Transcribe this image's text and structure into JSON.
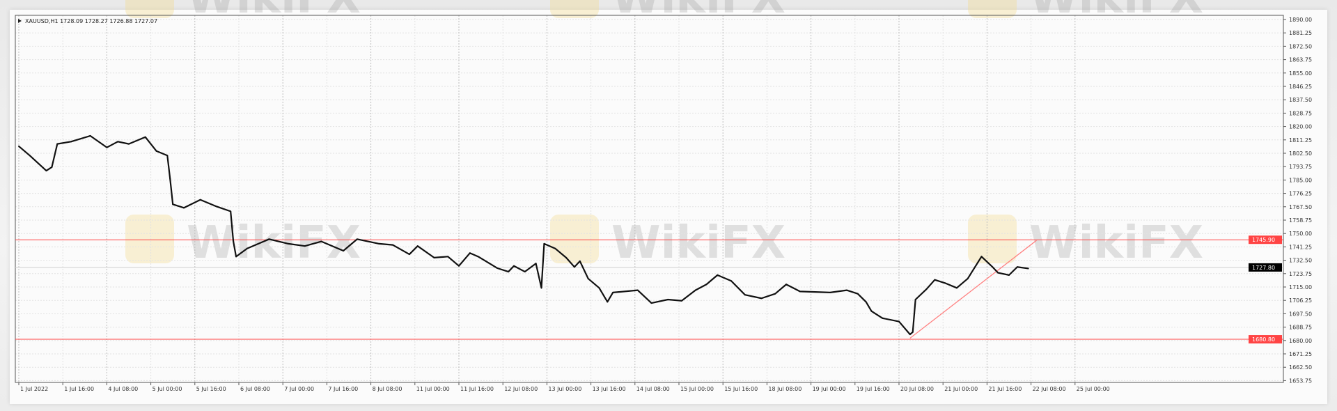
{
  "chart_data": {
    "type": "line",
    "title": "",
    "header": "XAUUSD,H1 1728.09 1728.27 1726.88 1727.07",
    "ylim": [
      1650,
      1892
    ],
    "grid": true,
    "y_ticks": [
      "1890.00",
      "1881.25",
      "1872.50",
      "1863.75",
      "1855.00",
      "1846.25",
      "1837.50",
      "1828.75",
      "1820.00",
      "1811.25",
      "1802.50",
      "1793.75",
      "1785.00",
      "1776.25",
      "1767.50",
      "1758.75",
      "1750.00",
      "1741.25",
      "1732.50",
      "1723.75",
      "1715.00",
      "1706.25",
      "1697.50",
      "1688.75",
      "1680.00",
      "1671.25",
      "1662.50",
      "1653.75"
    ],
    "x_ticks": [
      {
        "label": "1 Jul 2022",
        "time": "2022-07-01 00:00"
      },
      {
        "label": "1 Jul 16:00",
        "time": "2022-07-01 16:00"
      },
      {
        "label": "4 Jul 08:00",
        "time": "2022-07-04 08:00"
      },
      {
        "label": "5 Jul 00:00",
        "time": "2022-07-05 00:00"
      },
      {
        "label": "5 Jul 16:00",
        "time": "2022-07-05 16:00"
      },
      {
        "label": "6 Jul 08:00",
        "time": "2022-07-06 08:00"
      },
      {
        "label": "7 Jul 00:00",
        "time": "2022-07-07 00:00"
      },
      {
        "label": "7 Jul 16:00",
        "time": "2022-07-07 16:00"
      },
      {
        "label": "8 Jul 08:00",
        "time": "2022-07-08 08:00"
      },
      {
        "label": "11 Jul 00:00",
        "time": "2022-07-11 00:00"
      },
      {
        "label": "11 Jul 16:00",
        "time": "2022-07-11 16:00"
      },
      {
        "label": "12 Jul 08:00",
        "time": "2022-07-12 08:00"
      },
      {
        "label": "13 Jul 00:00",
        "time": "2022-07-13 00:00"
      },
      {
        "label": "13 Jul 16:00",
        "time": "2022-07-13 16:00"
      },
      {
        "label": "14 Jul 08:00",
        "time": "2022-07-14 08:00"
      },
      {
        "label": "15 Jul 00:00",
        "time": "2022-07-15 00:00"
      },
      {
        "label": "15 Jul 16:00",
        "time": "2022-07-15 16:00"
      },
      {
        "label": "18 Jul 08:00",
        "time": "2022-07-18 08:00"
      },
      {
        "label": "19 Jul 00:00",
        "time": "2022-07-19 00:00"
      },
      {
        "label": "19 Jul 16:00",
        "time": "2022-07-19 16:00"
      },
      {
        "label": "20 Jul 08:00",
        "time": "2022-07-20 08:00"
      },
      {
        "label": "21 Jul 00:00",
        "time": "2022-07-21 00:00"
      },
      {
        "label": "21 Jul 16:00",
        "time": "2022-07-21 16:00"
      },
      {
        "label": "22 Jul 08:00",
        "time": "2022-07-22 08:00"
      },
      {
        "label": "25 Jul 00:00",
        "time": "2022-07-25 00:00"
      }
    ],
    "series": [
      {
        "color": "#111111",
        "points": [
          [
            "2022-07-01 00:00",
            1807.1
          ],
          [
            "2022-07-01 04:00",
            1801.0
          ],
          [
            "2022-07-01 10:00",
            1791.1
          ],
          [
            "2022-07-01 12:00",
            1793.4
          ],
          [
            "2022-07-01 14:00",
            1808.6
          ],
          [
            "2022-07-01 19:00",
            1810.1
          ],
          [
            "2022-07-04 02:00",
            1813.9
          ],
          [
            "2022-07-04 08:00",
            1806.3
          ],
          [
            "2022-07-04 12:00",
            1810.1
          ],
          [
            "2022-07-04 16:00",
            1808.6
          ],
          [
            "2022-07-04 22:00",
            1813.1
          ],
          [
            "2022-07-05 02:00",
            1804.0
          ],
          [
            "2022-07-05 06:00",
            1801.0
          ],
          [
            "2022-07-05 07:00",
            1785.8
          ],
          [
            "2022-07-05 08:00",
            1769.1
          ],
          [
            "2022-07-05 12:00",
            1766.8
          ],
          [
            "2022-07-05 18:00",
            1772.1
          ],
          [
            "2022-07-06 00:00",
            1767.6
          ],
          [
            "2022-07-06 05:00",
            1764.5
          ],
          [
            "2022-07-06 06:00",
            1744.8
          ],
          [
            "2022-07-06 07:00",
            1734.9
          ],
          [
            "2022-07-06 11:00",
            1740.2
          ],
          [
            "2022-07-06 19:00",
            1746.3
          ],
          [
            "2022-07-07 02:00",
            1743.3
          ],
          [
            "2022-07-07 08:00",
            1741.8
          ],
          [
            "2022-07-07 14:00",
            1744.8
          ],
          [
            "2022-07-07 22:00",
            1738.7
          ],
          [
            "2022-07-08 03:00",
            1746.3
          ],
          [
            "2022-07-08 11:00",
            1743.3
          ],
          [
            "2022-07-08 16:00",
            1742.5
          ],
          [
            "2022-07-08 22:00",
            1736.4
          ],
          [
            "2022-07-11 01:00",
            1741.8
          ],
          [
            "2022-07-11 07:00",
            1734.2
          ],
          [
            "2022-07-11 12:00",
            1734.9
          ],
          [
            "2022-07-11 16:00",
            1728.8
          ],
          [
            "2022-07-11 20:00",
            1737.2
          ],
          [
            "2022-07-11 23:00",
            1734.9
          ],
          [
            "2022-07-12 06:00",
            1727.3
          ],
          [
            "2022-07-12 10:00",
            1725.0
          ],
          [
            "2022-07-12 12:00",
            1728.8
          ],
          [
            "2022-07-12 16:00",
            1725.0
          ],
          [
            "2022-07-12 20:00",
            1730.4
          ],
          [
            "2022-07-12 22:00",
            1714.4
          ],
          [
            "2022-07-12 23:00",
            1743.3
          ],
          [
            "2022-07-13 03:00",
            1740.2
          ],
          [
            "2022-07-13 07:00",
            1734.2
          ],
          [
            "2022-07-13 10:00",
            1728.1
          ],
          [
            "2022-07-13 12:00",
            1731.9
          ],
          [
            "2022-07-13 15:00",
            1720.5
          ],
          [
            "2022-07-13 19:00",
            1714.4
          ],
          [
            "2022-07-13 22:00",
            1705.3
          ],
          [
            "2022-07-14 00:00",
            1711.4
          ],
          [
            "2022-07-14 09:00",
            1712.9
          ],
          [
            "2022-07-14 14:00",
            1704.5
          ],
          [
            "2022-07-14 20:00",
            1706.8
          ],
          [
            "2022-07-15 01:00",
            1706.0
          ],
          [
            "2022-07-15 06:00",
            1712.9
          ],
          [
            "2022-07-15 10:00",
            1716.7
          ],
          [
            "2022-07-15 14:00",
            1722.8
          ],
          [
            "2022-07-15 19:00",
            1719.0
          ],
          [
            "2022-07-18 00:00",
            1709.9
          ],
          [
            "2022-07-18 06:00",
            1707.6
          ],
          [
            "2022-07-18 11:00",
            1710.6
          ],
          [
            "2022-07-18 15:00",
            1716.7
          ],
          [
            "2022-07-18 20:00",
            1712.1
          ],
          [
            "2022-07-19 07:00",
            1711.4
          ],
          [
            "2022-07-19 13:00",
            1712.9
          ],
          [
            "2022-07-19 17:00",
            1710.6
          ],
          [
            "2022-07-19 20:00",
            1705.3
          ],
          [
            "2022-07-19 22:00",
            1699.2
          ],
          [
            "2022-07-20 02:00",
            1694.6
          ],
          [
            "2022-07-20 08:00",
            1692.4
          ],
          [
            "2022-07-20 12:00",
            1684.0
          ],
          [
            "2022-07-20 13:00",
            1685.5
          ],
          [
            "2022-07-20 14:00",
            1706.8
          ],
          [
            "2022-07-20 18:00",
            1713.6
          ],
          [
            "2022-07-20 21:00",
            1719.7
          ],
          [
            "2022-07-21 01:00",
            1717.4
          ],
          [
            "2022-07-21 05:00",
            1714.4
          ],
          [
            "2022-07-21 09:00",
            1720.5
          ],
          [
            "2022-07-21 14:00",
            1734.9
          ],
          [
            "2022-07-21 18:00",
            1728.1
          ],
          [
            "2022-07-21 20:00",
            1724.3
          ],
          [
            "2022-07-22 00:00",
            1722.8
          ],
          [
            "2022-07-22 03:00",
            1728.1
          ],
          [
            "2022-07-22 07:00",
            1727.1
          ]
        ]
      }
    ],
    "horizontal_lines": [
      {
        "price": 1745.9,
        "label": "1745.90",
        "color": "#ff4444"
      },
      {
        "price": 1680.8,
        "label": "1680.80",
        "color": "#ff4444"
      }
    ],
    "current_price": {
      "price": 1727.8,
      "label": "1727.80",
      "color": "#000000"
    },
    "trendline": {
      "color": "#ff8080",
      "from": [
        "2022-07-20 12:00",
        1681.5
      ],
      "to": [
        "2022-07-22 10:00",
        1745.5
      ]
    },
    "watermark": "WikiFX"
  }
}
